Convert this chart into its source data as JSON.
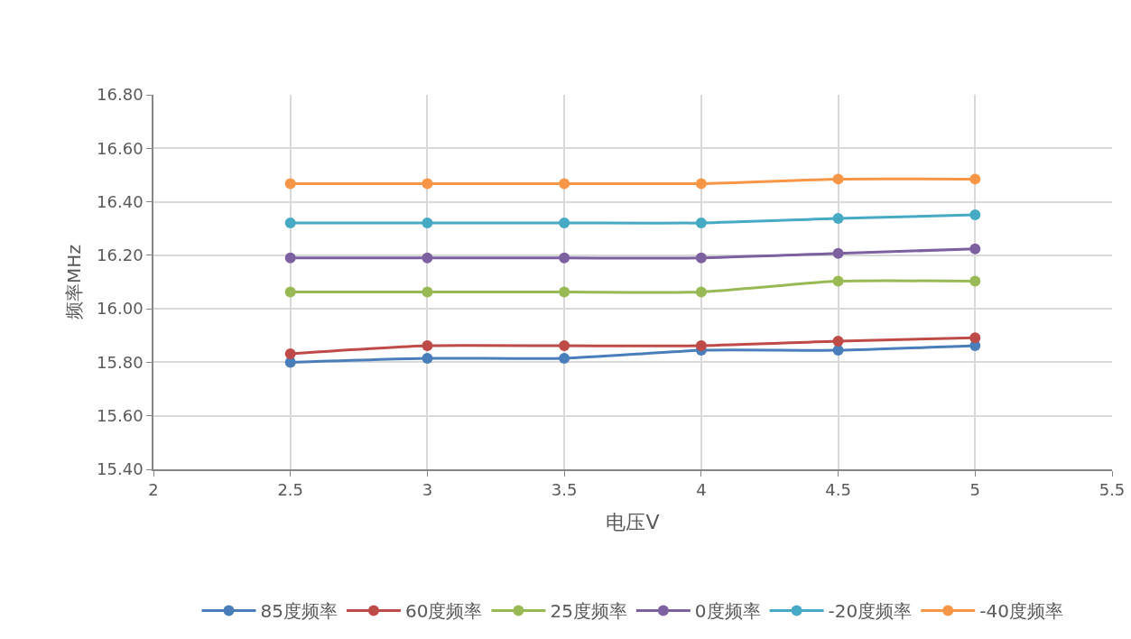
{
  "chart_data": {
    "type": "line",
    "xlabel": "电压V",
    "ylabel": "频率MHz",
    "x": [
      2.5,
      3,
      3.5,
      4,
      4.5,
      5
    ],
    "xlim": [
      2,
      5.5
    ],
    "xticks": [
      2,
      2.5,
      3,
      3.5,
      4,
      4.5,
      5,
      5.5
    ],
    "ylim": [
      15.4,
      16.8
    ],
    "yticks": [
      {
        "value": 15.4,
        "label": "15.40"
      },
      {
        "value": 15.6,
        "label": "15.60"
      },
      {
        "value": 15.8,
        "label": "15.80"
      },
      {
        "value": 16.0,
        "label": "16.00"
      },
      {
        "value": 16.2,
        "label": "16.20"
      },
      {
        "value": 16.4,
        "label": "16.40"
      },
      {
        "value": 16.6,
        "label": "16.60"
      },
      {
        "value": 16.8,
        "label": "16.80"
      }
    ],
    "grid": true,
    "legend": "bottom",
    "marker": "circle",
    "line_style": "solid",
    "series": [
      {
        "name": "85度频率",
        "color": "#4a7ebb",
        "values": [
          15.8,
          15.815,
          15.815,
          15.845,
          15.845,
          15.862
        ]
      },
      {
        "name": "60度频率",
        "color": "#be4b48",
        "values": [
          15.832,
          15.862,
          15.862,
          15.862,
          15.879,
          15.892
        ]
      },
      {
        "name": "25度频率",
        "color": "#98b954",
        "values": [
          16.063,
          16.063,
          16.063,
          16.063,
          16.103,
          16.103
        ]
      },
      {
        "name": "0度频率",
        "color": "#7d60a0",
        "values": [
          16.19,
          16.19,
          16.19,
          16.19,
          16.207,
          16.224
        ]
      },
      {
        "name": "-20度频率",
        "color": "#46aac5",
        "values": [
          16.321,
          16.321,
          16.321,
          16.321,
          16.338,
          16.351
        ]
      },
      {
        "name": "-40度频率",
        "color": "#f79646",
        "values": [
          16.468,
          16.468,
          16.468,
          16.468,
          16.485,
          16.485
        ]
      }
    ]
  }
}
